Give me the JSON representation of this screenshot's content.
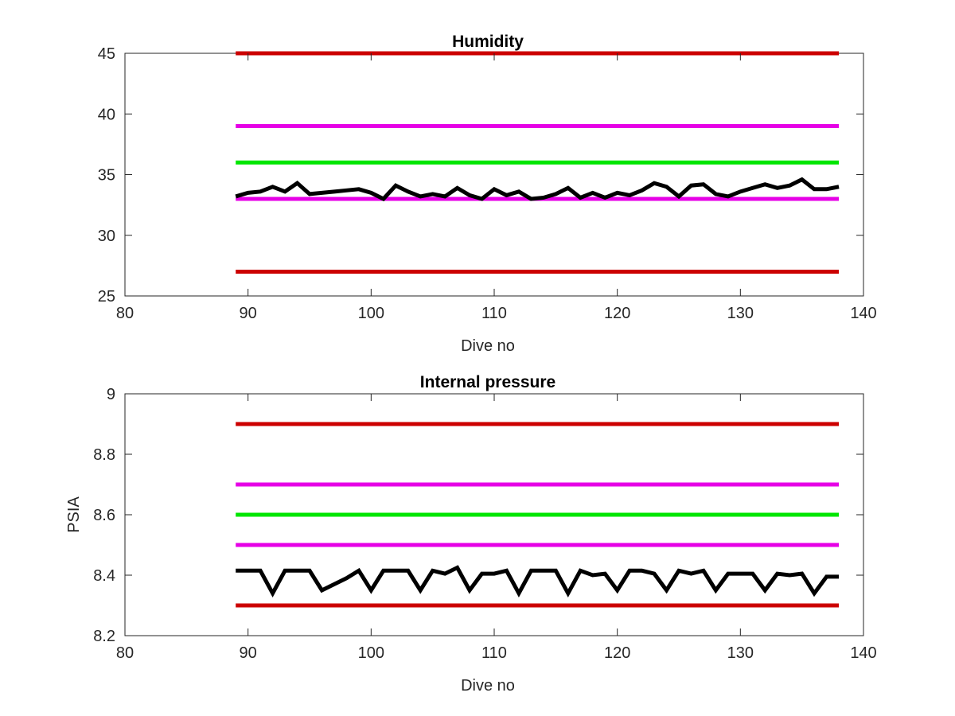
{
  "colors": {
    "red": "#cc0000",
    "magenta": "#e600e6",
    "green": "#00e600",
    "black": "#000000",
    "axis": "#262626"
  },
  "chart_data": [
    {
      "type": "line",
      "title": "Humidity",
      "xlabel": "Dive no",
      "ylabel": "",
      "xlim": [
        80,
        140
      ],
      "ylim": [
        25,
        45
      ],
      "xticks": [
        80,
        90,
        100,
        110,
        120,
        130,
        140
      ],
      "yticks": [
        25,
        30,
        35,
        40,
        45
      ],
      "xtick_labels": [
        "80",
        "90",
        "100",
        "110",
        "120",
        "130",
        "140"
      ],
      "ytick_labels": [
        "25",
        "30",
        "35",
        "40",
        "45"
      ],
      "grid": false,
      "reference_lines": [
        {
          "y": 45,
          "x": [
            89,
            138
          ],
          "color": "red"
        },
        {
          "y": 39,
          "x": [
            89,
            138
          ],
          "color": "magenta"
        },
        {
          "y": 36,
          "x": [
            89,
            138
          ],
          "color": "green"
        },
        {
          "y": 33,
          "x": [
            89,
            138
          ],
          "color": "magenta"
        },
        {
          "y": 27,
          "x": [
            89,
            138
          ],
          "color": "red"
        }
      ],
      "series": [
        {
          "color": "black",
          "x": [
            89,
            90,
            91,
            92,
            93,
            94,
            95,
            96,
            97,
            98,
            99,
            100,
            101,
            102,
            103,
            104,
            105,
            106,
            107,
            108,
            109,
            110,
            111,
            112,
            113,
            114,
            115,
            116,
            117,
            118,
            119,
            120,
            121,
            122,
            123,
            124,
            125,
            126,
            127,
            128,
            129,
            130,
            131,
            132,
            133,
            134,
            135,
            136,
            137,
            138
          ],
          "y": [
            33.2,
            33.5,
            33.6,
            34.0,
            33.6,
            34.3,
            33.4,
            33.5,
            33.6,
            33.7,
            33.8,
            33.5,
            33.0,
            34.1,
            33.6,
            33.2,
            33.4,
            33.2,
            33.9,
            33.3,
            33.0,
            33.8,
            33.3,
            33.6,
            33.0,
            33.1,
            33.4,
            33.9,
            33.1,
            33.5,
            33.1,
            33.5,
            33.3,
            33.7,
            34.3,
            34.0,
            33.2,
            34.1,
            34.2,
            33.4,
            33.2,
            33.6,
            33.9,
            34.2,
            33.9,
            34.1,
            34.6,
            33.8,
            33.8,
            34.0
          ]
        }
      ]
    },
    {
      "type": "line",
      "title": "Internal pressure",
      "xlabel": "Dive no",
      "ylabel": "PSIA",
      "xlim": [
        80,
        140
      ],
      "ylim": [
        8.2,
        9.0
      ],
      "xticks": [
        80,
        90,
        100,
        110,
        120,
        130,
        140
      ],
      "yticks": [
        8.2,
        8.4,
        8.6,
        8.8,
        9.0
      ],
      "xtick_labels": [
        "80",
        "90",
        "100",
        "110",
        "120",
        "130",
        "140"
      ],
      "ytick_labels": [
        "8.2",
        "8.4",
        "8.6",
        "8.8",
        "9"
      ],
      "grid": false,
      "reference_lines": [
        {
          "y": 8.9,
          "x": [
            89,
            138
          ],
          "color": "red"
        },
        {
          "y": 8.7,
          "x": [
            89,
            138
          ],
          "color": "magenta"
        },
        {
          "y": 8.6,
          "x": [
            89,
            138
          ],
          "color": "green"
        },
        {
          "y": 8.5,
          "x": [
            89,
            138
          ],
          "color": "magenta"
        },
        {
          "y": 8.3,
          "x": [
            89,
            138
          ],
          "color": "red"
        }
      ],
      "series": [
        {
          "color": "black",
          "x": [
            89,
            90,
            91,
            92,
            93,
            94,
            95,
            96,
            97,
            98,
            99,
            100,
            101,
            102,
            103,
            104,
            105,
            106,
            107,
            108,
            109,
            110,
            111,
            112,
            113,
            114,
            115,
            116,
            117,
            118,
            119,
            120,
            121,
            122,
            123,
            124,
            125,
            126,
            127,
            128,
            129,
            130,
            131,
            132,
            133,
            134,
            135,
            136,
            137,
            138
          ],
          "y": [
            8.415,
            8.415,
            8.415,
            8.34,
            8.415,
            8.415,
            8.415,
            8.35,
            8.37,
            8.39,
            8.415,
            8.35,
            8.415,
            8.415,
            8.415,
            8.35,
            8.415,
            8.405,
            8.425,
            8.35,
            8.405,
            8.405,
            8.415,
            8.34,
            8.415,
            8.415,
            8.415,
            8.34,
            8.415,
            8.4,
            8.405,
            8.35,
            8.415,
            8.415,
            8.405,
            8.35,
            8.415,
            8.405,
            8.415,
            8.35,
            8.405,
            8.405,
            8.405,
            8.35,
            8.405,
            8.4,
            8.405,
            8.34,
            8.395,
            8.395
          ]
        }
      ]
    }
  ]
}
